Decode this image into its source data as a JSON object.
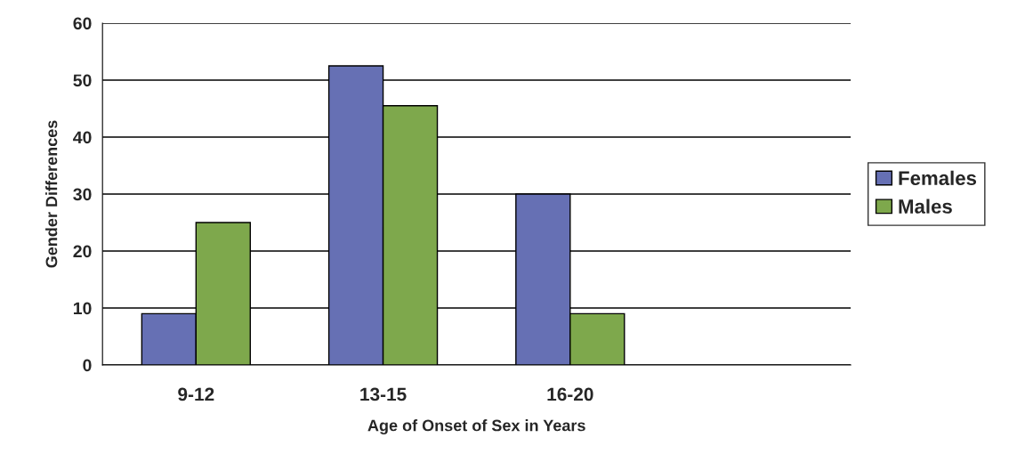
{
  "chart_data": {
    "type": "bar",
    "xlabel": "Age of Onset of Sex in Years",
    "ylabel": "Gender Differences",
    "categories": [
      "9-12",
      "13-15",
      "16-20",
      null
    ],
    "series": [
      {
        "name": "Females",
        "color": "#6670b4",
        "values": [
          9,
          52.5,
          30,
          null
        ]
      },
      {
        "name": "Males",
        "color": "#7ea84c",
        "values": [
          25,
          45.5,
          9,
          null
        ]
      }
    ],
    "ylim": [
      0,
      60
    ],
    "yticks": [
      0,
      10,
      20,
      30,
      40,
      50,
      60
    ],
    "grid": "y",
    "legend": "right"
  }
}
